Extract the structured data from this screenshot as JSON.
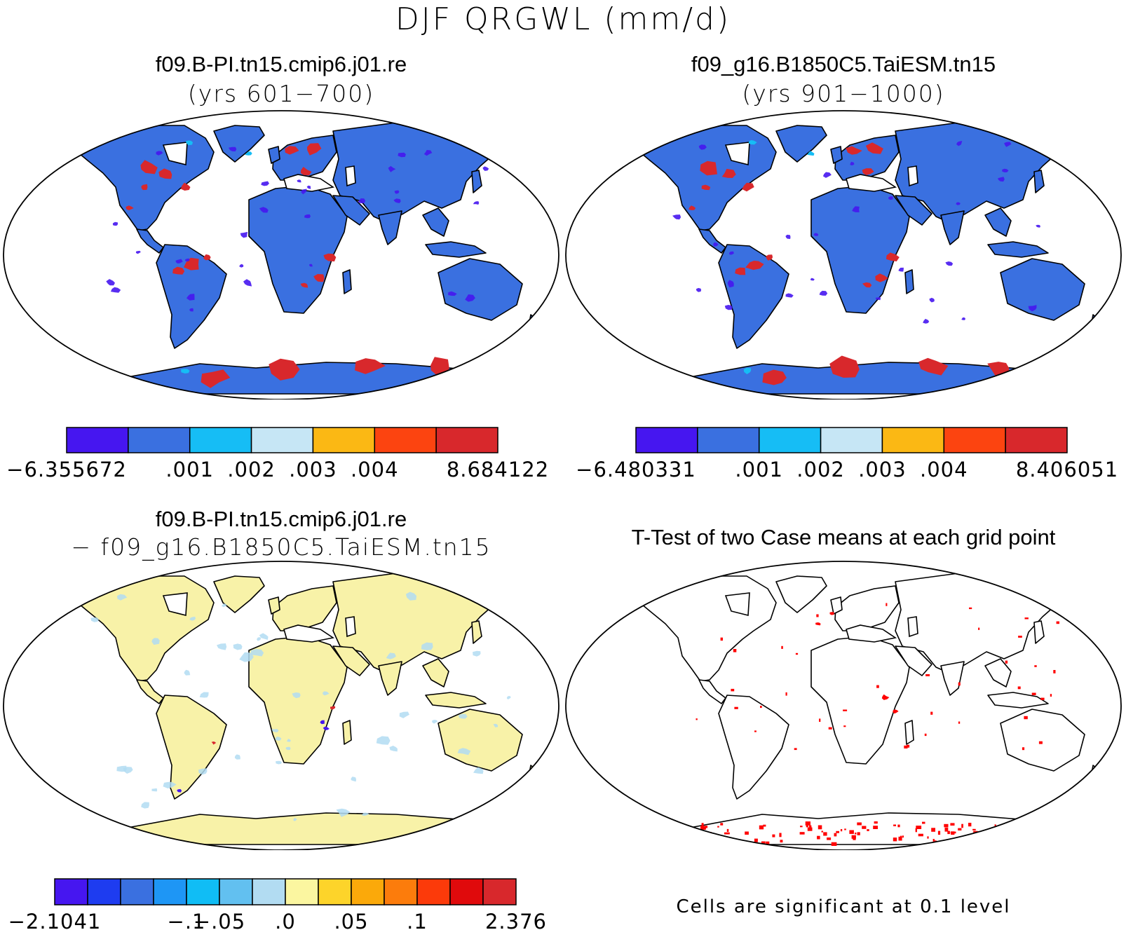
{
  "main_title": "DJF QRGWL (mm/d)",
  "panels": {
    "top_left": {
      "title": "f09.B-PI.tn15.cmip6.j01.re",
      "subtitle": "(yrs 601−700)",
      "colorbar": {
        "colors": [
          "#4616f0",
          "#3a70e0",
          "#16bdf5",
          "#c6e6f5",
          "#fbb814",
          "#fc4410",
          "#d8282c"
        ],
        "labels": [
          "−6.355672",
          ".001",
          ".002",
          ".003",
          ".004",
          "8.684122"
        ]
      }
    },
    "top_right": {
      "title": "f09_g16.B1850C5.TaiESM.tn15",
      "subtitle": "(yrs 901−1000)",
      "colorbar": {
        "colors": [
          "#4616f0",
          "#3a70e0",
          "#16bdf5",
          "#c6e6f5",
          "#fbb814",
          "#fc4410",
          "#d8282c"
        ],
        "labels": [
          "−6.480331",
          ".001",
          ".002",
          ".003",
          ".004",
          "8.406051"
        ]
      }
    },
    "bottom_left": {
      "title": "f09.B-PI.tn15.cmip6.j01.re",
      "subtitle": "− f09_g16.B1850C5.TaiESM.tn15",
      "colorbar": {
        "colors": [
          "#4616f0",
          "#1e3cf0",
          "#3a70e0",
          "#1e96f5",
          "#10bdf5",
          "#62c0f0",
          "#b2dcf2",
          "#fbf6a0",
          "#fdd42a",
          "#fba90a",
          "#fc7c0c",
          "#fc3a0a",
          "#e00a0c",
          "#d8282c"
        ],
        "labels": [
          "−2.1041",
          "−.1",
          "−.05",
          ".0",
          ".05",
          ".1",
          "2.376"
        ]
      }
    },
    "bottom_right": {
      "title": "T-Test of two Case means at each grid point",
      "note": "Cells are significant at 0.1 level"
    }
  },
  "map_colors": {
    "land_base": "#3a70e0",
    "land_diff": "#f8f2a8",
    "positive": "#d8282c",
    "negative": "#4616f0",
    "light": "#b2dcf2",
    "significant": "#ff0000"
  }
}
